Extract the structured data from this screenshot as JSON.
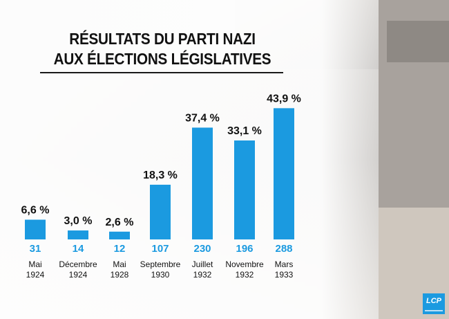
{
  "title_line1": "RÉSULTATS DU PARTI NAZI",
  "title_line2": "AUX ÉLECTIONS LÉGISLATIVES",
  "logo_text": "LCP",
  "colors": {
    "bar": "#1b9ae0",
    "seat_label": "#1b9ae0",
    "text": "#111111"
  },
  "chart_data": {
    "type": "bar",
    "title": "RÉSULTATS DU PARTI NAZI AUX ÉLECTIONS LÉGISLATIVES",
    "xlabel": "",
    "ylabel": "",
    "grid": false,
    "legend": "none",
    "categories": [
      [
        "Mai",
        "1924"
      ],
      [
        "Décembre",
        "1924"
      ],
      [
        "Mai",
        "1928"
      ],
      [
        "Septembre",
        "1930"
      ],
      [
        "Juillet",
        "1932"
      ],
      [
        "Novembre",
        "1932"
      ],
      [
        "Mars",
        "1933"
      ]
    ],
    "values": [
      6.6,
      3.0,
      2.6,
      18.3,
      37.4,
      33.1,
      43.9
    ],
    "value_labels": [
      "6,6 %",
      "3,0 %",
      "2,6 %",
      "18,3 %",
      "37,4 %",
      "33,1 %",
      "43,9 %"
    ],
    "seats": [
      "31",
      "14",
      "12",
      "107",
      "230",
      "196",
      "288"
    ],
    "ylim": [
      0,
      50
    ]
  }
}
